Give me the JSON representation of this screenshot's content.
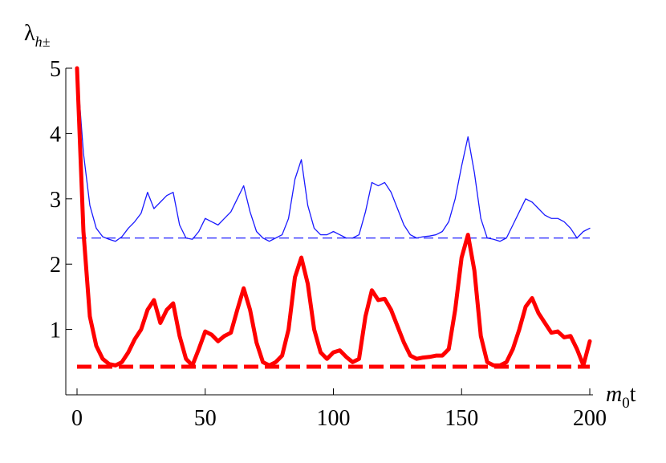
{
  "chart_data": {
    "type": "line",
    "y_label": {
      "symbol": "λ",
      "subscript": "h±"
    },
    "x_label": {
      "symbol": "m",
      "subscript": "0",
      "suffix": "t"
    },
    "x": [
      0,
      2.5,
      5,
      7.5,
      10,
      12.5,
      15,
      17.5,
      20,
      22.5,
      25,
      27.5,
      30,
      32.5,
      35,
      37.5,
      40,
      42.5,
      45,
      47.5,
      50,
      52.5,
      55,
      57.5,
      60,
      62.5,
      65,
      67.5,
      70,
      72.5,
      75,
      77.5,
      80,
      82.5,
      85,
      87.5,
      90,
      92.5,
      95,
      97.5,
      100,
      102.5,
      105,
      107.5,
      110,
      112.5,
      115,
      117.5,
      120,
      122.5,
      125,
      127.5,
      130,
      132.5,
      135,
      137.5,
      140,
      142.5,
      145,
      147.5,
      150,
      152.5,
      155,
      157.5,
      160,
      162.5,
      165,
      167.5,
      170,
      172.5,
      175,
      177.5,
      180,
      182.5,
      185,
      187.5,
      190,
      192.5,
      195,
      197.5,
      200
    ],
    "series": [
      {
        "color": "#1a1aff",
        "width": 1.3,
        "values": [
          5,
          3.7,
          2.9,
          2.55,
          2.42,
          2.38,
          2.35,
          2.42,
          2.55,
          2.65,
          2.78,
          3.1,
          2.85,
          2.95,
          3.05,
          3.1,
          2.6,
          2.4,
          2.38,
          2.5,
          2.7,
          2.65,
          2.6,
          2.7,
          2.8,
          3.0,
          3.2,
          2.8,
          2.5,
          2.4,
          2.35,
          2.4,
          2.45,
          2.7,
          3.3,
          3.6,
          2.9,
          2.55,
          2.45,
          2.45,
          2.5,
          2.45,
          2.4,
          2.4,
          2.45,
          2.8,
          3.25,
          3.2,
          3.25,
          3.1,
          2.85,
          2.6,
          2.45,
          2.4,
          2.42,
          2.43,
          2.45,
          2.5,
          2.65,
          3.0,
          3.5,
          3.95,
          3.4,
          2.7,
          2.4,
          2.38,
          2.35,
          2.4,
          2.6,
          2.8,
          3.0,
          2.95,
          2.85,
          2.75,
          2.7,
          2.7,
          2.65,
          2.55,
          2.4,
          2.5,
          2.55
        ]
      },
      {
        "color": "#ff0000",
        "width": 5,
        "values": [
          5,
          2.5,
          1.2,
          0.75,
          0.55,
          0.47,
          0.45,
          0.5,
          0.65,
          0.85,
          1.0,
          1.3,
          1.45,
          1.1,
          1.3,
          1.4,
          0.9,
          0.55,
          0.45,
          0.7,
          0.97,
          0.92,
          0.82,
          0.9,
          0.95,
          1.3,
          1.63,
          1.3,
          0.8,
          0.5,
          0.45,
          0.5,
          0.6,
          1.0,
          1.8,
          2.1,
          1.7,
          1.0,
          0.65,
          0.55,
          0.65,
          0.68,
          0.58,
          0.5,
          0.55,
          1.2,
          1.6,
          1.45,
          1.47,
          1.3,
          1.05,
          0.8,
          0.6,
          0.55,
          0.57,
          0.58,
          0.6,
          0.6,
          0.7,
          1.3,
          2.1,
          2.45,
          1.9,
          0.9,
          0.5,
          0.45,
          0.45,
          0.5,
          0.7,
          1.0,
          1.35,
          1.48,
          1.25,
          1.1,
          0.95,
          0.97,
          0.88,
          0.9,
          0.7,
          0.45,
          0.82
        ]
      }
    ],
    "reference_lines": [
      {
        "value": 2.4,
        "color": "#1a1aff",
        "width": 1.3
      },
      {
        "value": 0.43,
        "color": "#ff0000",
        "width": 5
      }
    ],
    "xlim": [
      0,
      200
    ],
    "ylim": [
      0,
      5
    ],
    "xticks": [
      0,
      50,
      100,
      150,
      200
    ],
    "yticks": [
      1,
      2,
      3,
      4,
      5
    ]
  }
}
